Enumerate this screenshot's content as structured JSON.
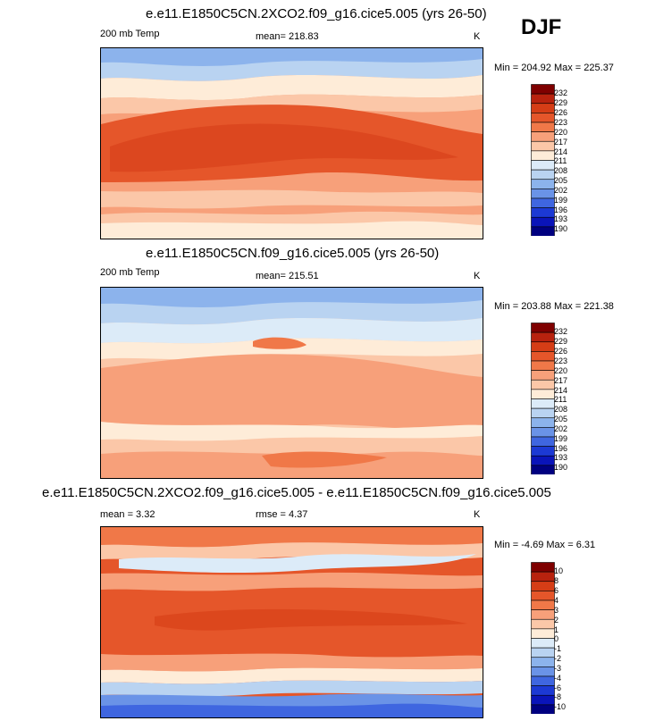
{
  "season": "DJF",
  "panels": [
    {
      "title": "e.e11.E1850C5CN.2XCO2.f09_g16.cice5.005 (yrs 26-50)",
      "left_label": "200 mb Temp",
      "mean_text": "mean= 218.83",
      "units": "K",
      "minmax": "Min = 204.92 Max = 225.37",
      "legend": {
        "labels": [
          "232",
          "229",
          "226",
          "223",
          "220",
          "217",
          "214",
          "211",
          "208",
          "205",
          "202",
          "199",
          "196",
          "193",
          "190"
        ],
        "colors": [
          "#7f0000",
          "#b8220e",
          "#d53d16",
          "#e5562a",
          "#f07848",
          "#f7a07a",
          "#fbc7a8",
          "#feecd8",
          "#dcebf8",
          "#b9d3f1",
          "#8cb3ec",
          "#6a93e7",
          "#3f66e0",
          "#1c39d4",
          "#0a14b9",
          "#000080"
        ]
      }
    },
    {
      "title": "e.e11.E1850C5CN.f09_g16.cice5.005 (yrs 26-50)",
      "left_label": "200 mb Temp",
      "mean_text": "mean= 215.51",
      "units": "K",
      "minmax": "Min = 203.88 Max = 221.38",
      "legend": {
        "labels": [
          "232",
          "229",
          "226",
          "223",
          "220",
          "217",
          "214",
          "211",
          "208",
          "205",
          "202",
          "199",
          "196",
          "193",
          "190"
        ],
        "colors": [
          "#7f0000",
          "#b8220e",
          "#d53d16",
          "#e5562a",
          "#f07848",
          "#f7a07a",
          "#fbc7a8",
          "#feecd8",
          "#dcebf8",
          "#b9d3f1",
          "#8cb3ec",
          "#6a93e7",
          "#3f66e0",
          "#1c39d4",
          "#0a14b9",
          "#000080"
        ]
      }
    },
    {
      "title": "e.e11.E1850C5CN.2XCO2.f09_g16.cice5.005 - e.e11.E1850C5CN.f09_g16.cice5.005",
      "left_label": "mean =   3.32",
      "mean_text": "rmse =   4.37",
      "units": "K",
      "minmax": "Min = -4.69 Max =  6.31",
      "legend": {
        "labels": [
          "10",
          "8",
          "6",
          "4",
          "3",
          "2",
          "1",
          "0",
          "-1",
          "-2",
          "-3",
          "-4",
          "-6",
          "-8",
          "-10"
        ],
        "colors": [
          "#7f0000",
          "#b8220e",
          "#d53d16",
          "#e5562a",
          "#f07848",
          "#f7a07a",
          "#fbc7a8",
          "#feecd8",
          "#dcebf8",
          "#b9d3f1",
          "#8cb3ec",
          "#6a93e7",
          "#3f66e0",
          "#1c39d4",
          "#0a14b9",
          "#000080"
        ]
      }
    }
  ]
}
